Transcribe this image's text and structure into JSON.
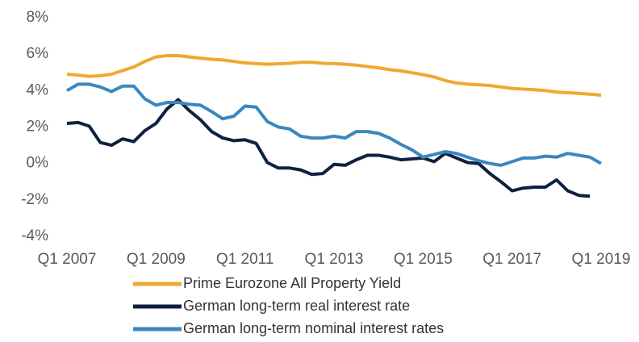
{
  "chart_data": {
    "type": "line",
    "categories": [
      "Q1 2007",
      null,
      null,
      null,
      null,
      null,
      null,
      null,
      "Q1 2009",
      null,
      null,
      null,
      null,
      null,
      null,
      null,
      "Q1 2011",
      null,
      null,
      null,
      null,
      null,
      null,
      null,
      "Q1 2013",
      null,
      null,
      null,
      null,
      null,
      null,
      null,
      "Q1 2015",
      null,
      null,
      null,
      null,
      null,
      null,
      null,
      "Q1 2017",
      null,
      null,
      null,
      null,
      null,
      null,
      null,
      "Q1 2019"
    ],
    "series": [
      {
        "name": "Prime Eurozone All Property Yield",
        "color": "#f0a830",
        "values": [
          4.9,
          4.85,
          4.78,
          4.82,
          4.9,
          5.1,
          5.3,
          5.6,
          5.85,
          5.92,
          5.92,
          5.85,
          5.78,
          5.72,
          5.68,
          5.6,
          5.52,
          5.48,
          5.45,
          5.47,
          5.5,
          5.55,
          5.55,
          5.5,
          5.48,
          5.45,
          5.4,
          5.32,
          5.25,
          5.15,
          5.08,
          4.98,
          4.88,
          4.75,
          4.55,
          4.42,
          4.35,
          4.32,
          4.28,
          4.2,
          4.12,
          4.08,
          4.05,
          4.0,
          3.92,
          3.88,
          3.85,
          3.8,
          3.75
        ]
      },
      {
        "name": "German long-term real interest rate",
        "color": "#0d2240",
        "values": [
          2.2,
          2.25,
          2.05,
          1.15,
          1.0,
          1.35,
          1.2,
          1.8,
          2.2,
          3.0,
          3.5,
          2.9,
          2.4,
          1.75,
          1.4,
          1.25,
          1.3,
          1.1,
          0.05,
          -0.25,
          -0.25,
          -0.35,
          -0.6,
          -0.55,
          -0.05,
          -0.1,
          0.2,
          0.45,
          0.45,
          0.35,
          0.2,
          0.25,
          0.3,
          0.1,
          0.55,
          0.3,
          0.05,
          0.0,
          -0.55,
          -1.0,
          -1.5,
          -1.35,
          -1.3,
          -1.3,
          -0.9,
          -1.5,
          -1.75,
          -1.8,
          null
        ]
      },
      {
        "name": "German long-term nominal interest rates",
        "color": "#3a87c0",
        "values": [
          4.0,
          4.35,
          4.35,
          4.2,
          3.95,
          4.25,
          4.25,
          3.55,
          3.2,
          3.35,
          3.35,
          3.25,
          3.2,
          2.85,
          2.45,
          2.6,
          3.15,
          3.1,
          2.3,
          2.0,
          1.9,
          1.5,
          1.4,
          1.4,
          1.5,
          1.4,
          1.75,
          1.75,
          1.65,
          1.4,
          1.05,
          0.75,
          0.35,
          0.5,
          0.65,
          0.55,
          0.35,
          0.15,
          0.0,
          -0.1,
          0.1,
          0.3,
          0.3,
          0.4,
          0.35,
          0.55,
          0.45,
          0.35,
          0.0
        ]
      }
    ],
    "ylim": [
      -4,
      8
    ],
    "yticks": [
      {
        "value": -4,
        "label": "-4%"
      },
      {
        "value": -2,
        "label": "-2%"
      },
      {
        "value": 0,
        "label": "0%"
      },
      {
        "value": 2,
        "label": "2%"
      },
      {
        "value": 4,
        "label": "4%"
      },
      {
        "value": 6,
        "label": "6%"
      },
      {
        "value": 8,
        "label": "8%"
      }
    ],
    "grid": false,
    "legend": "bottom"
  }
}
